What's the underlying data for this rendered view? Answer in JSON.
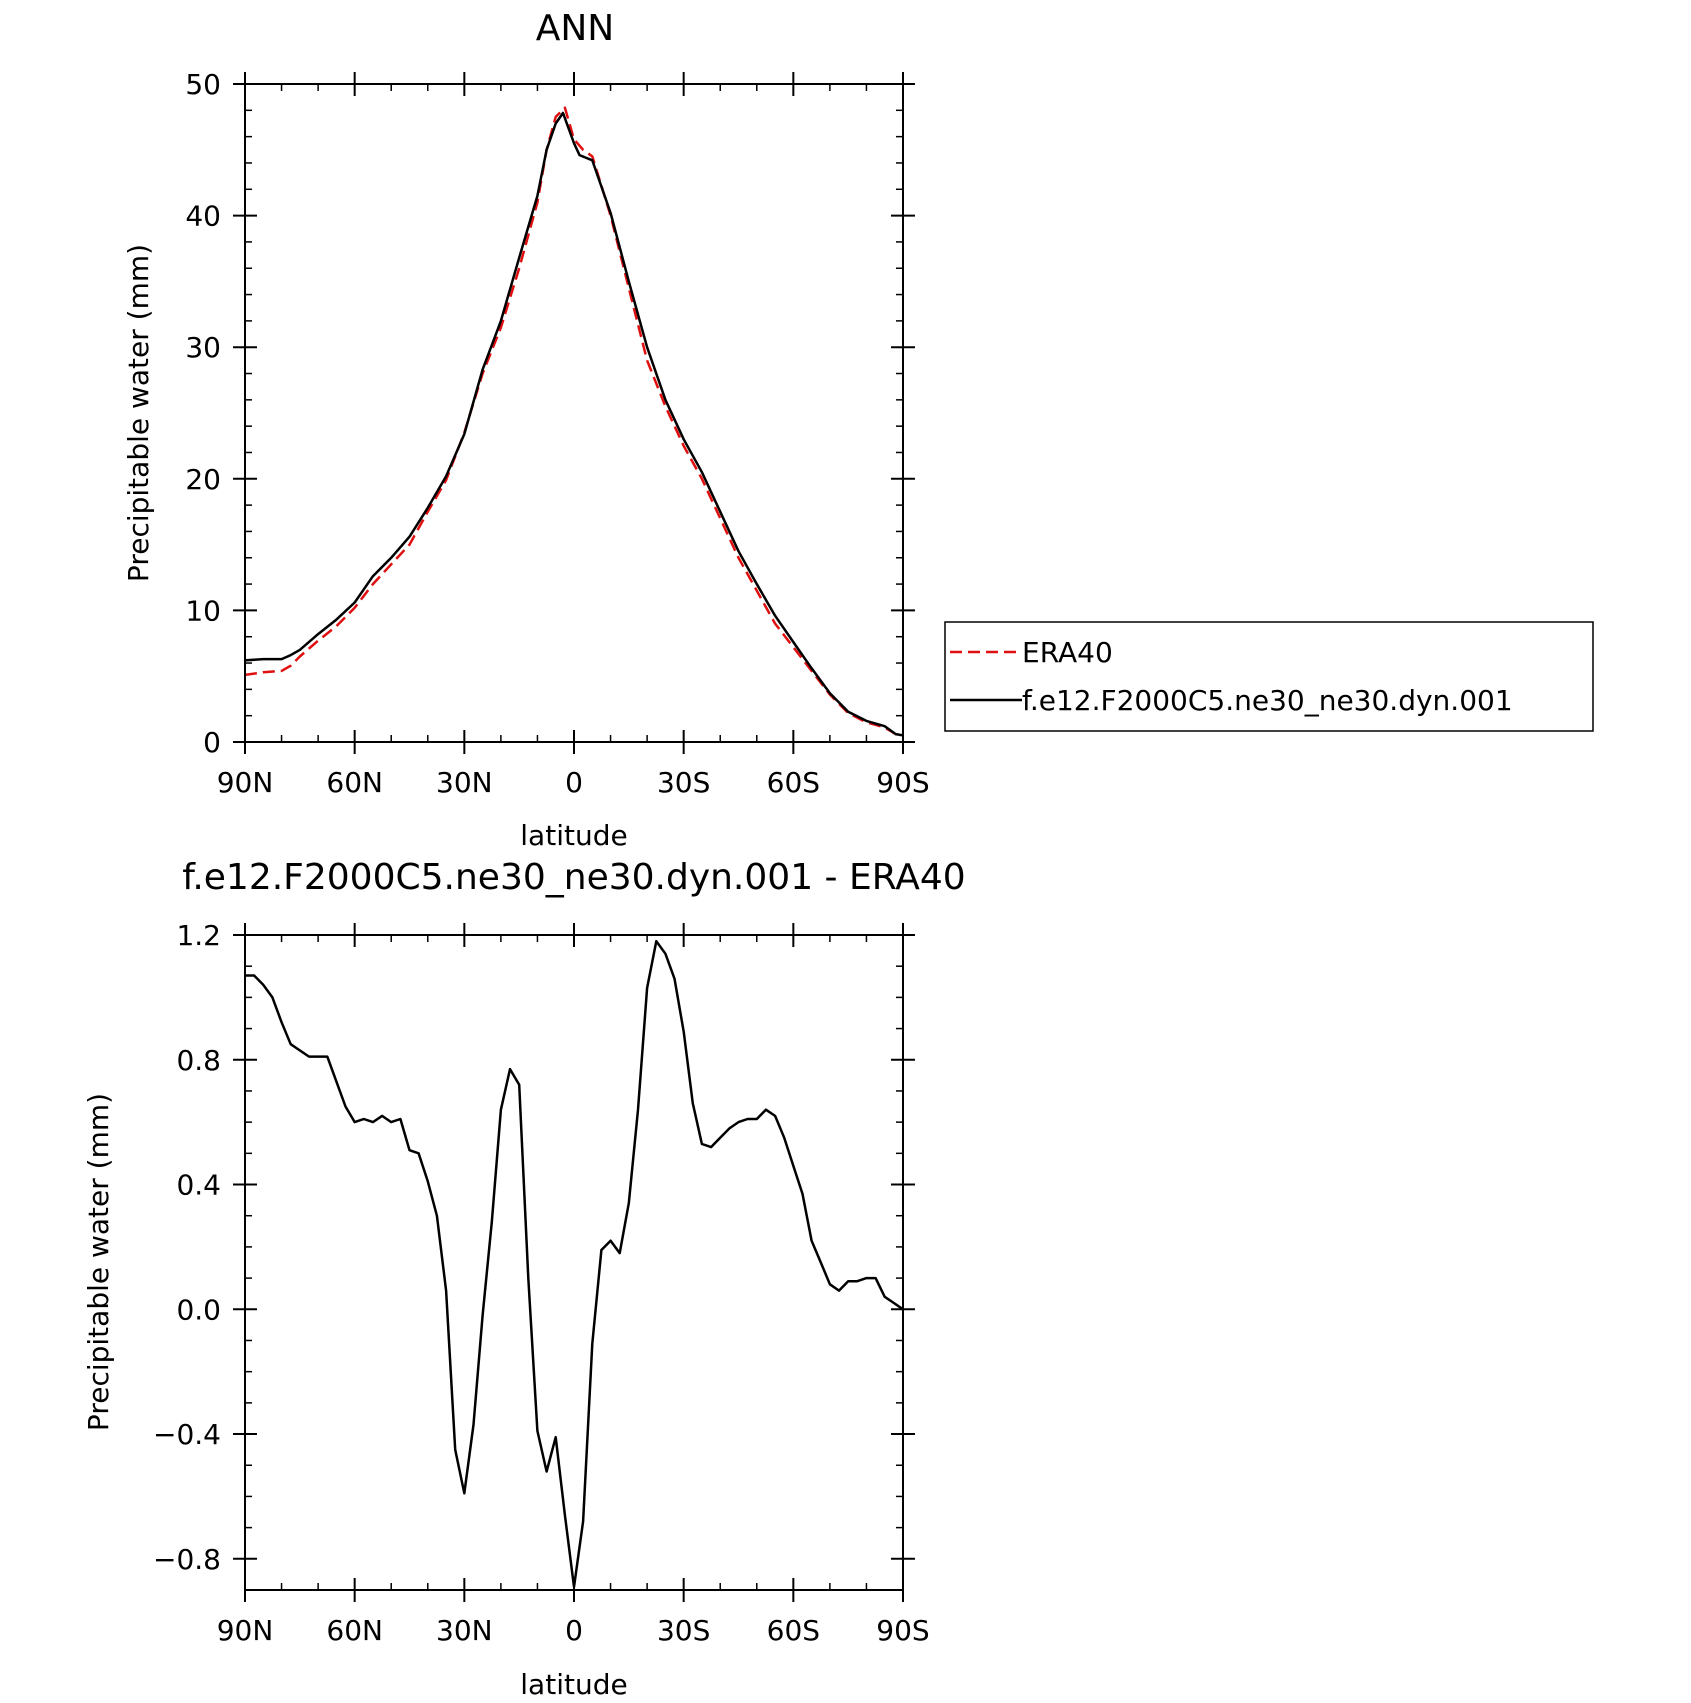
{
  "charts": {
    "top": {
      "title": "ANN",
      "xlabel": "latitude",
      "ylabel": "Precipitable water (mm)",
      "xticklabels": [
        "90N",
        "60N",
        "30N",
        "0",
        "30S",
        "60S",
        "90S"
      ],
      "yticklabels": [
        "0",
        "10",
        "20",
        "30",
        "40",
        "50"
      ],
      "legend": [
        "ERA40",
        "f.e12.F2000C5.ne30_ne30.dyn.001"
      ]
    },
    "bottom": {
      "title": "f.e12.F2000C5.ne30_ne30.dyn.001 - ERA40",
      "xlabel": "latitude",
      "ylabel": "Precipitable water (mm)",
      "xticklabels": [
        "90N",
        "60N",
        "30N",
        "0",
        "30S",
        "60S",
        "90S"
      ],
      "yticklabels": [
        "-0.8",
        "-0.4",
        "0.0",
        "0.4",
        "0.8",
        "1.2"
      ]
    }
  },
  "chart_data": [
    {
      "type": "line",
      "title": "ANN",
      "xlabel": "latitude",
      "ylabel": "Precipitable water (mm)",
      "x_description": "latitude, north positive",
      "xlim": [
        90,
        -90
      ],
      "ylim": [
        0,
        50
      ],
      "xticks": [
        90,
        60,
        30,
        0,
        -30,
        -60,
        -90
      ],
      "yticks": [
        0,
        10,
        20,
        30,
        40,
        50
      ],
      "legend_position": "right",
      "series": [
        {
          "name": "ERA40",
          "color": "#e01010",
          "style": "dashed",
          "points": [
            [
              90,
              5.1
            ],
            [
              85,
              5.3
            ],
            [
              80,
              5.4
            ],
            [
              77.5,
              5.8
            ],
            [
              75,
              6.5
            ],
            [
              70,
              7.7
            ],
            [
              65,
              8.8
            ],
            [
              60,
              10.2
            ],
            [
              55,
              12.0
            ],
            [
              50,
              13.5
            ],
            [
              45,
              15.0
            ],
            [
              40,
              17.5
            ],
            [
              35,
              19.9
            ],
            [
              30,
              23.5
            ],
            [
              25,
              28.0
            ],
            [
              20,
              31.5
            ],
            [
              15,
              36.0
            ],
            [
              10,
              41.0
            ],
            [
              7.5,
              45.0
            ],
            [
              5,
              47.5
            ],
            [
              2.5,
              48.2
            ],
            [
              0,
              45.8
            ],
            [
              -2.5,
              45.0
            ],
            [
              -5,
              44.5
            ],
            [
              -10,
              40.0
            ],
            [
              -15,
              34.5
            ],
            [
              -20,
              29.0
            ],
            [
              -25,
              25.5
            ],
            [
              -30,
              22.5
            ],
            [
              -35,
              20.0
            ],
            [
              -40,
              17.0
            ],
            [
              -45,
              14.0
            ],
            [
              -50,
              11.5
            ],
            [
              -55,
              9.0
            ],
            [
              -60,
              7.2
            ],
            [
              -65,
              5.4
            ],
            [
              -70,
              3.6
            ],
            [
              -75,
              2.2
            ],
            [
              -80,
              1.5
            ],
            [
              -85,
              1.1
            ],
            [
              -88,
              0.6
            ],
            [
              -90,
              0.5
            ]
          ]
        },
        {
          "name": "f.e12.F2000C5.ne30_ne30.dyn.001",
          "color": "#000000",
          "style": "solid",
          "points": [
            [
              90,
              6.2
            ],
            [
              85,
              6.3
            ],
            [
              80,
              6.3
            ],
            [
              77.5,
              6.6
            ],
            [
              75,
              7.0
            ],
            [
              70,
              8.2
            ],
            [
              65,
              9.3
            ],
            [
              60,
              10.6
            ],
            [
              55,
              12.6
            ],
            [
              50,
              14.0
            ],
            [
              45,
              15.6
            ],
            [
              40,
              17.8
            ],
            [
              35,
              20.2
            ],
            [
              30,
              23.4
            ],
            [
              25,
              28.3
            ],
            [
              20,
              32.0
            ],
            [
              15,
              36.8
            ],
            [
              10,
              41.5
            ],
            [
              7.5,
              45.0
            ],
            [
              5,
              47.0
            ],
            [
              3,
              47.8
            ],
            [
              0,
              45.5
            ],
            [
              -1.5,
              44.6
            ],
            [
              -5,
              44.2
            ],
            [
              -10,
              40.2
            ],
            [
              -15,
              35.0
            ],
            [
              -20,
              30.0
            ],
            [
              -25,
              26.0
            ],
            [
              -30,
              23.0
            ],
            [
              -35,
              20.5
            ],
            [
              -40,
              17.5
            ],
            [
              -45,
              14.5
            ],
            [
              -50,
              12.0
            ],
            [
              -55,
              9.6
            ],
            [
              -60,
              7.6
            ],
            [
              -65,
              5.6
            ],
            [
              -70,
              3.7
            ],
            [
              -75,
              2.3
            ],
            [
              -80,
              1.6
            ],
            [
              -85,
              1.2
            ],
            [
              -88,
              0.6
            ],
            [
              -90,
              0.5
            ]
          ]
        }
      ]
    },
    {
      "type": "line",
      "title": "f.e12.F2000C5.ne30_ne30.dyn.001 - ERA40",
      "xlabel": "latitude",
      "ylabel": "Precipitable water (mm)",
      "x_description": "latitude, north positive",
      "xlim": [
        90,
        -90
      ],
      "ylim": [
        -0.9,
        1.2
      ],
      "xticks": [
        90,
        60,
        30,
        0,
        -30,
        -60,
        -90
      ],
      "yticks": [
        -0.8,
        -0.4,
        0.0,
        0.4,
        0.8,
        1.2
      ],
      "series": [
        {
          "color": "#000000",
          "style": "solid",
          "points": [
            [
              90,
              1.07
            ],
            [
              87.5,
              1.07
            ],
            [
              85,
              1.04
            ],
            [
              82.5,
              1.0
            ],
            [
              80,
              0.92
            ],
            [
              77.5,
              0.85
            ],
            [
              75,
              0.83
            ],
            [
              72.5,
              0.81
            ],
            [
              70,
              0.81
            ],
            [
              67.5,
              0.81
            ],
            [
              65,
              0.73
            ],
            [
              62.5,
              0.65
            ],
            [
              60,
              0.6
            ],
            [
              57.5,
              0.61
            ],
            [
              55,
              0.6
            ],
            [
              52.5,
              0.62
            ],
            [
              50,
              0.6
            ],
            [
              47.5,
              0.61
            ],
            [
              45,
              0.51
            ],
            [
              42.5,
              0.5
            ],
            [
              40,
              0.41
            ],
            [
              37.5,
              0.3
            ],
            [
              35,
              0.06
            ],
            [
              32.5,
              -0.45
            ],
            [
              30,
              -0.59
            ],
            [
              27.5,
              -0.37
            ],
            [
              25,
              -0.02
            ],
            [
              22.5,
              0.28
            ],
            [
              20,
              0.64
            ],
            [
              17.5,
              0.77
            ],
            [
              15,
              0.72
            ],
            [
              12.5,
              0.1
            ],
            [
              10,
              -0.39
            ],
            [
              7.5,
              -0.52
            ],
            [
              5,
              -0.41
            ],
            [
              2.5,
              -0.66
            ],
            [
              0,
              -0.89
            ],
            [
              -2.5,
              -0.68
            ],
            [
              -5,
              -0.11
            ],
            [
              -7.5,
              0.19
            ],
            [
              -10,
              0.22
            ],
            [
              -12.5,
              0.18
            ],
            [
              -15,
              0.34
            ],
            [
              -17.5,
              0.64
            ],
            [
              -20,
              1.03
            ],
            [
              -22.5,
              1.18
            ],
            [
              -25,
              1.14
            ],
            [
              -27.5,
              1.06
            ],
            [
              -30,
              0.89
            ],
            [
              -32.5,
              0.66
            ],
            [
              -35,
              0.53
            ],
            [
              -37.5,
              0.52
            ],
            [
              -40,
              0.55
            ],
            [
              -42.5,
              0.58
            ],
            [
              -45,
              0.6
            ],
            [
              -47.5,
              0.61
            ],
            [
              -50,
              0.61
            ],
            [
              -52.5,
              0.64
            ],
            [
              -55,
              0.62
            ],
            [
              -57.5,
              0.55
            ],
            [
              -60,
              0.46
            ],
            [
              -62.5,
              0.37
            ],
            [
              -65,
              0.22
            ],
            [
              -67.5,
              0.15
            ],
            [
              -70,
              0.08
            ],
            [
              -72.5,
              0.06
            ],
            [
              -75,
              0.09
            ],
            [
              -77.5,
              0.09
            ],
            [
              -80,
              0.1
            ],
            [
              -82.5,
              0.1
            ],
            [
              -85,
              0.04
            ],
            [
              -87.5,
              0.02
            ],
            [
              -90,
              0.0
            ]
          ]
        }
      ]
    }
  ]
}
